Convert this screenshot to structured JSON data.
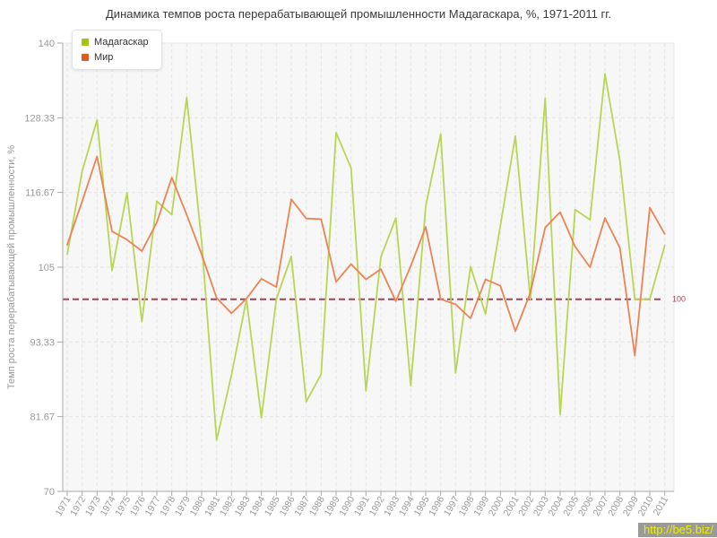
{
  "chart_data": {
    "type": "line",
    "title": "Динамика темпов роста перерабатывающей промышленности Мадагаскара, %, 1971-2011 гг.",
    "x": [
      1971,
      1972,
      1973,
      1974,
      1975,
      1976,
      1977,
      1978,
      1979,
      1980,
      1981,
      1982,
      1983,
      1984,
      1985,
      1986,
      1987,
      1988,
      1989,
      1990,
      1991,
      1992,
      1993,
      1994,
      1995,
      1996,
      1997,
      1998,
      1999,
      2000,
      2001,
      2002,
      2003,
      2004,
      2005,
      2006,
      2007,
      2008,
      2009,
      2010,
      2011
    ],
    "series": [
      {
        "name": "Мадагаскар",
        "swatch": "#a6c60e",
        "color": "#b9d554",
        "values": [
          107,
          120,
          128,
          104.5,
          116.6,
          96.5,
          115.3,
          113.2,
          131.5,
          109,
          78,
          88.2,
          100,
          81.5,
          100,
          106.7,
          84,
          88.3,
          126,
          120.5,
          85.7,
          106.6,
          112.7,
          86.5,
          114.5,
          125.8,
          88.5,
          105.1,
          97.7,
          111.5,
          125.5,
          100,
          131.4,
          82,
          114,
          112.4,
          135.2,
          121.6,
          100,
          100,
          108.4
        ]
      },
      {
        "name": "Мир",
        "swatch": "#dd5b1d",
        "color": "#ec8354",
        "values": [
          108.5,
          115.3,
          122.3,
          110.6,
          109.3,
          107.5,
          112,
          119,
          113.2,
          107,
          100.2,
          97.8,
          100.1,
          103.2,
          101.9,
          115.6,
          112.6,
          112.5,
          102.7,
          105.5,
          103.1,
          104.7,
          99.7,
          105.2,
          111.3,
          100,
          99.2,
          97,
          103.1,
          102.1,
          95,
          101,
          111.2,
          113.6,
          108.2,
          105,
          112.7,
          108,
          91.2,
          114.3,
          110.2
        ]
      }
    ],
    "xlabel": "",
    "ylabel": "Темп роста перерабатывающей промышленности, %",
    "ylim": [
      70,
      140
    ],
    "y_ticks": [
      "140",
      "128.33",
      "116.67",
      "105",
      "93.33",
      "81.67",
      "70"
    ],
    "grid": "dashed",
    "legend_position": "top-left",
    "baseline": {
      "value": 100,
      "label": "100",
      "color": "#9e4456"
    }
  },
  "watermark": {
    "text": "http://be5.biz/",
    "bg": "#9a9a9a",
    "color": "#eef000"
  }
}
